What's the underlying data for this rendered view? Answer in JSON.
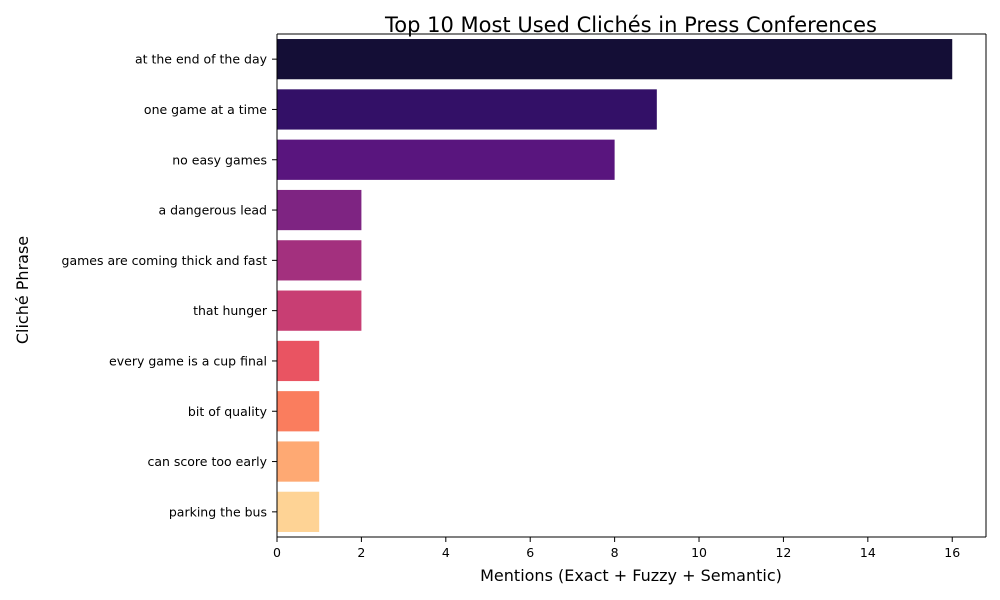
{
  "chart_data": {
    "type": "bar",
    "orientation": "horizontal",
    "title": "Top 10 Most Used Clichés in Press Conferences",
    "xlabel": "Mentions (Exact + Fuzzy + Semantic)",
    "ylabel": "Cliché Phrase",
    "categories": [
      "at the end of the day",
      "one game at a time",
      "no easy games",
      "a dangerous lead",
      "games are coming thick and fast",
      "that hunger",
      "every game is a cup final",
      "bit of quality",
      "can score too early",
      "parking the bus"
    ],
    "values": [
      16,
      9,
      8,
      2,
      2,
      2,
      1,
      1,
      1,
      1
    ],
    "xlim": [
      0,
      16.8
    ],
    "xticks": [
      0,
      2,
      4,
      6,
      8,
      10,
      12,
      14,
      16
    ],
    "grid": false,
    "legend": "none",
    "colors": [
      "#140e36",
      "#331067",
      "#59157e",
      "#7e2482",
      "#a3307e",
      "#c83e73",
      "#e95462",
      "#fa7d5e",
      "#fea973",
      "#fed395"
    ]
  }
}
